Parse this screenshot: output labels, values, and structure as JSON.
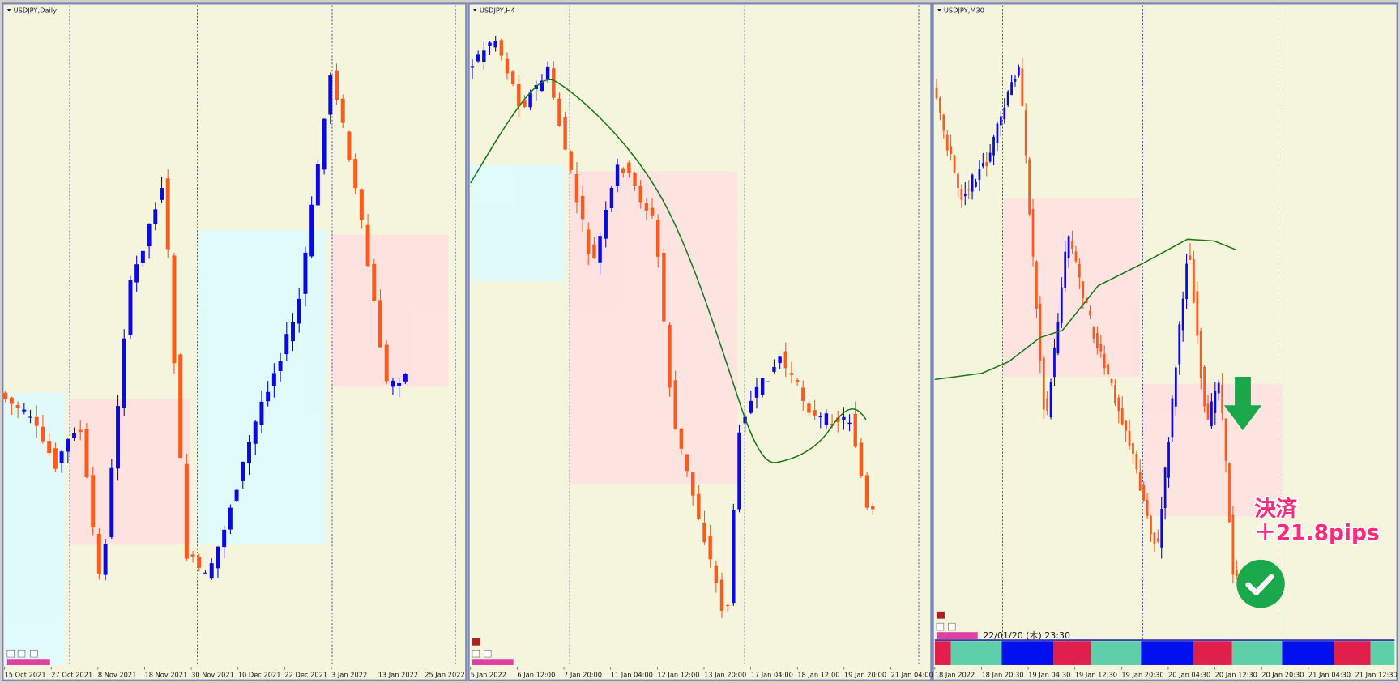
{
  "panels": [
    {
      "title": "USDJPY,Daily",
      "x_labels": [
        "15 Oct 2021",
        "27 Oct 2021",
        "8 Nov 2021",
        "18 Nov 2021",
        "30 Nov 2021",
        "10 Dec 2021",
        "22 Dec 2021",
        "3 Jan 2022",
        "13 Jan 2022",
        "25 Jan 2022"
      ]
    },
    {
      "title": "USDJPY,H4",
      "x_labels": [
        "5 Jan 2022",
        "6 Jan 12:00",
        "7 Jan 20:00",
        "11 Jan 04:00",
        "12 Jan 12:00",
        "13 Jan 20:00",
        "17 Jan 04:00",
        "18 Jan 12:00",
        "19 Jan 20:00",
        "21 Jan 04:00"
      ]
    },
    {
      "title": "USDJPY,M30",
      "x_labels": [
        "18 Jan 2022",
        "18 Jan 20:30",
        "19 Jan 04:30",
        "19 Jan 12:30",
        "19 Jan 20:30",
        "20 Jan 04:30",
        "20 Jan 12:30",
        "20 Jan 20:30",
        "21 Jan 04:30",
        "21 Jan 12:30"
      ],
      "timestamp": "22/01/20 (木) 23:30"
    }
  ],
  "annotation": {
    "line1": "決済",
    "line2": "＋21.8pips"
  }
}
